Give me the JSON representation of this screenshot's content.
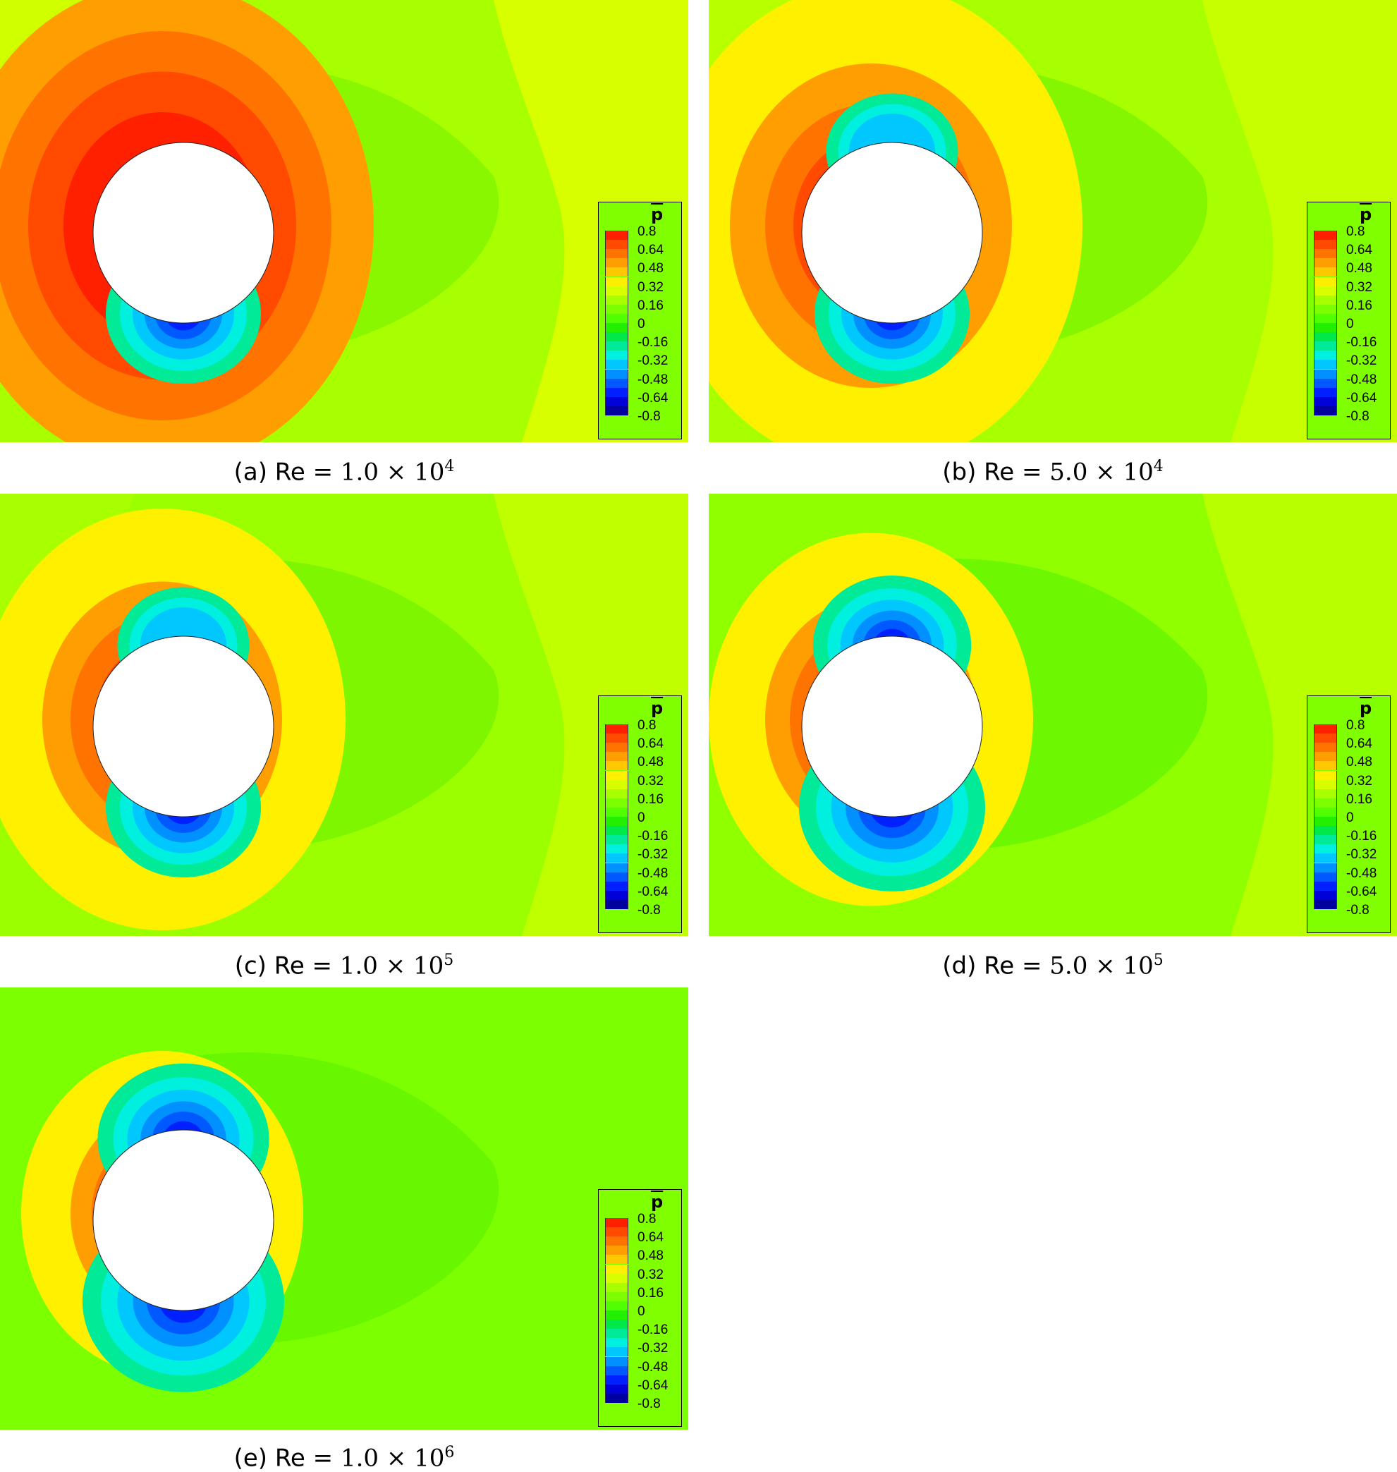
{
  "panels": [
    {
      "id": "a",
      "caption_prefix": "(a) Re =",
      "mantissa": "1.0",
      "exponent": "4",
      "variant": 0
    },
    {
      "id": "b",
      "caption_prefix": "(b) Re =",
      "mantissa": "5.0",
      "exponent": "4",
      "variant": 1
    },
    {
      "id": "c",
      "caption_prefix": "(c) Re =",
      "mantissa": "1.0",
      "exponent": "5",
      "variant": 2
    },
    {
      "id": "d",
      "caption_prefix": "(d) Re =",
      "mantissa": "5.0",
      "exponent": "5",
      "variant": 3
    },
    {
      "id": "e",
      "caption_prefix": "(e) Re =",
      "mantissa": "1.0",
      "exponent": "6",
      "variant": 4
    }
  ],
  "legend": {
    "title": "p",
    "ticks": [
      "0.8",
      "0.64",
      "0.48",
      "0.32",
      "0.16",
      "0",
      "-0.16",
      "-0.32",
      "-0.48",
      "-0.64",
      "-0.8"
    ],
    "colors": [
      "#ff2000",
      "#ff4a00",
      "#ff7400",
      "#ff9e00",
      "#ffc800",
      "#fff000",
      "#d8ff00",
      "#a8ff00",
      "#7cff00",
      "#50ff00",
      "#22f000",
      "#00e84a",
      "#00ea98",
      "#00f0e0",
      "#00c8ff",
      "#0090ff",
      "#0058ff",
      "#0020ff",
      "#0000d8",
      "#0000a0"
    ]
  },
  "times_sign": "×",
  "base": "10"
}
